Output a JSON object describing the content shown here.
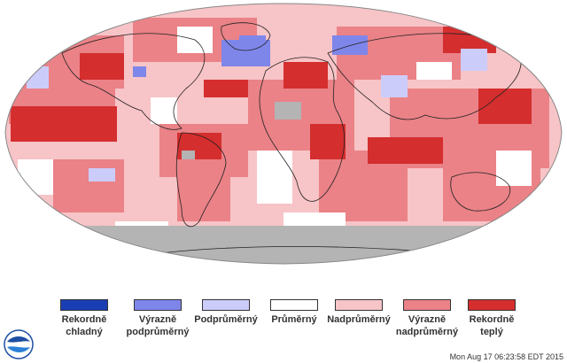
{
  "legend": [
    {
      "key": "record-cold",
      "label_line1": "Rekordně",
      "label_line2": "chladný",
      "color": "#1a3fb5"
    },
    {
      "key": "much-below",
      "label_line1": "Výrazně",
      "label_line2": "podprůměrný",
      "color": "#7f86ea"
    },
    {
      "key": "below",
      "label_line1": "Podprůměrný",
      "label_line2": "",
      "color": "#ccccfb"
    },
    {
      "key": "average",
      "label_line1": "Průměrný",
      "label_line2": "",
      "color": "#ffffff"
    },
    {
      "key": "above",
      "label_line1": "Nadprůměrný",
      "label_line2": "",
      "color": "#f7c4c7"
    },
    {
      "key": "much-above",
      "label_line1": "Výrazně",
      "label_line2": "nadprůměrný",
      "color": "#ea8287"
    },
    {
      "key": "record-warm",
      "label_line1": "Rekordně",
      "label_line2": "teplý",
      "color": "#d42e2e"
    }
  ],
  "timestamp": "Mon Aug 17 06:23:58 EDT 2015",
  "colors": {
    "nodata": "#b4b4b4",
    "land_outline": "#222222"
  }
}
